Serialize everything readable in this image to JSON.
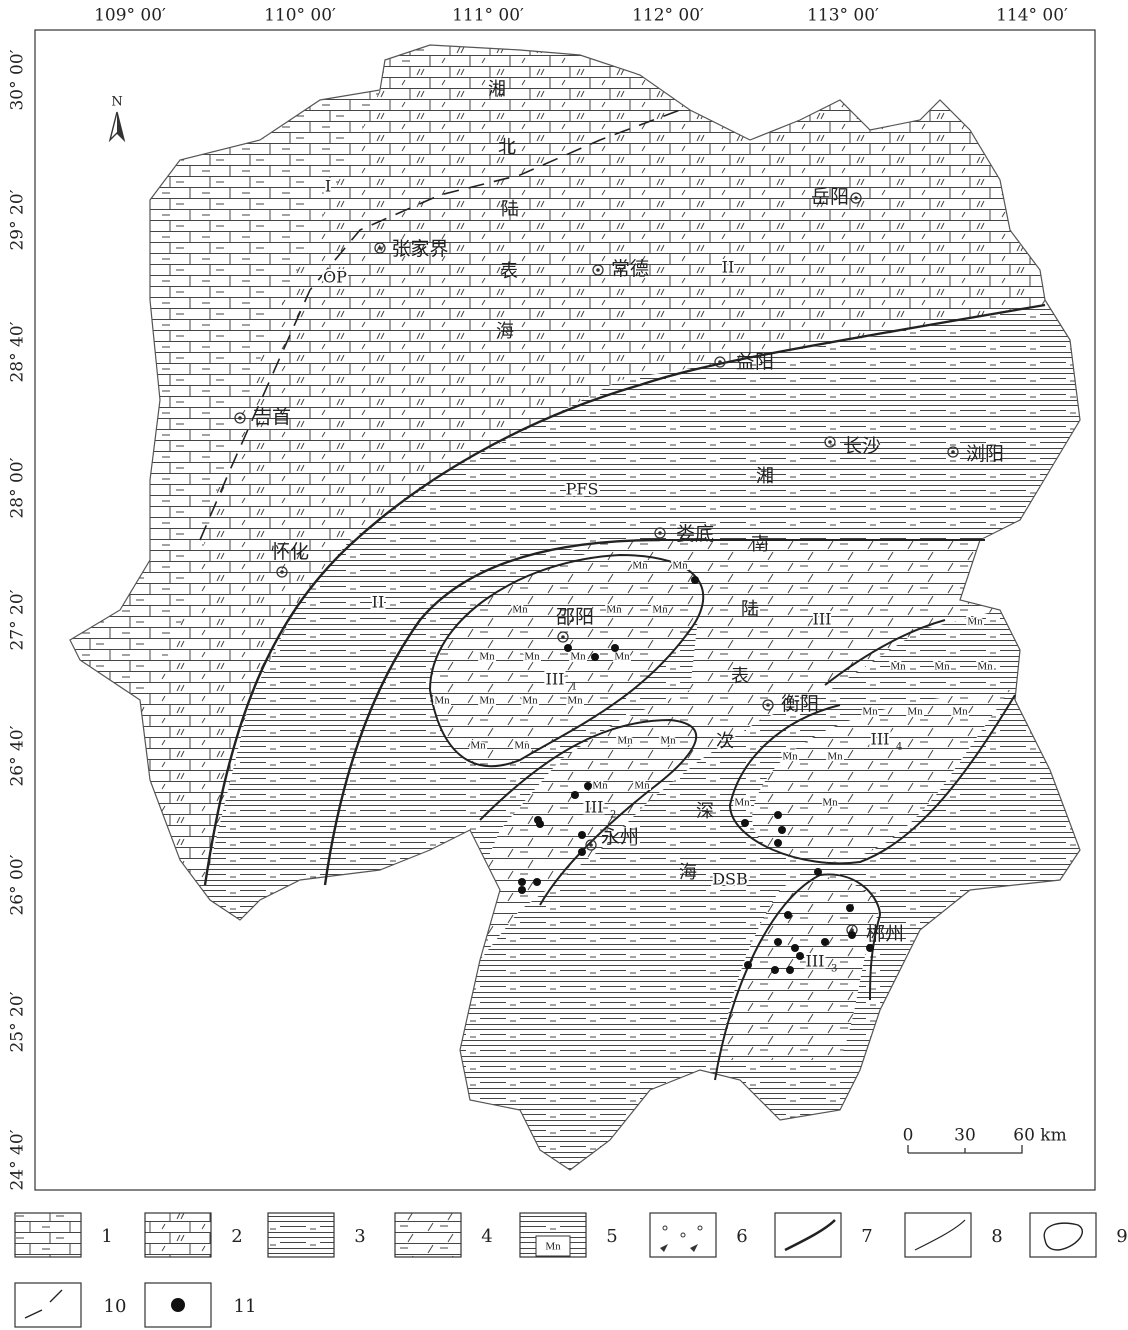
{
  "longitude_labels": [
    "109° 00′",
    "110° 00′",
    "111° 00′",
    "112° 00′",
    "113° 00′",
    "114° 00′"
  ],
  "latitude_labels": [
    "30° 00′",
    "29° 20′",
    "28° 40′",
    "28° 00′",
    "27° 20′",
    "26° 40′",
    "26° 00′",
    "25° 20′",
    "24° 40′"
  ],
  "north": "N",
  "cities": [
    "岳阳",
    "张家界",
    "常德",
    "益阳",
    "吉首",
    "长沙",
    "浏阳",
    "娄底",
    "怀化",
    "邵阳",
    "衡阳",
    "永州",
    "郴州"
  ],
  "north_sea": [
    "湘",
    "北",
    "陆",
    "表",
    "海"
  ],
  "south_sea": [
    "湘",
    "南",
    "陆",
    "表",
    "次",
    "深",
    "海"
  ],
  "zones": [
    {
      "label": "I"
    },
    {
      "label": "II"
    },
    {
      "label": "II"
    },
    {
      "label": "III"
    },
    {
      "label": "III",
      "sub": "1"
    },
    {
      "label": "III",
      "sub": "2"
    },
    {
      "label": "III",
      "sub": "3"
    },
    {
      "label": "III",
      "sub": "4"
    },
    {
      "label": "OP"
    },
    {
      "label": "PFS"
    },
    {
      "label": "DSB"
    }
  ],
  "mn_labels": [
    "Mn",
    "Mn",
    "Mn",
    "Mn",
    "Mn",
    "Mn",
    "Mn",
    "Mn",
    "Mn",
    "Mn",
    "Mn",
    "Mn",
    "Mn",
    "Mn",
    "Mn",
    "Mn",
    "Mn",
    "Mn",
    "Mn",
    "Mn",
    "Mn",
    "Mn",
    "Mn",
    "Mn",
    "Mn",
    "Mn",
    "Mn",
    "Mn",
    "Mn",
    "Mn"
  ],
  "scale_bar": [
    "0",
    "30",
    "60 km"
  ],
  "legend": [
    "1",
    "2",
    "3",
    "4",
    "5",
    "6",
    "7",
    "8",
    "9",
    "10",
    "11"
  ],
  "legend_mn": "Mn"
}
